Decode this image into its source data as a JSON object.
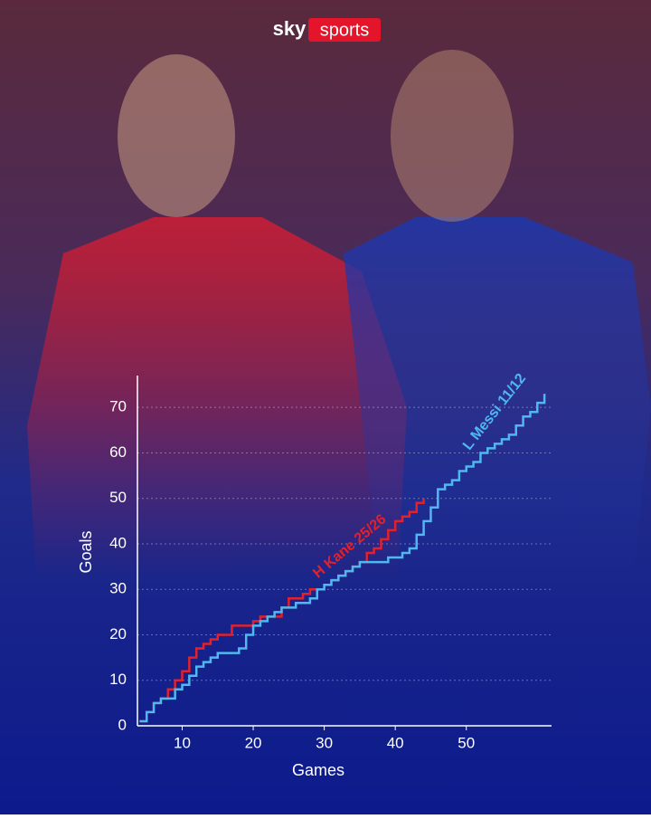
{
  "header": {
    "brand": "sky",
    "brand_badge": "sports"
  },
  "chart_data": {
    "type": "step-line",
    "x_label": "Games",
    "y_label": "Goals",
    "x": [
      4,
      5,
      6,
      7,
      8,
      9,
      10,
      11,
      12,
      13,
      14,
      15,
      16,
      17,
      18,
      19,
      20,
      21,
      22,
      23,
      24,
      25,
      26,
      27,
      28,
      29,
      30,
      31,
      32,
      33,
      34,
      35,
      36,
      37,
      38,
      39,
      40,
      41,
      42,
      43,
      44,
      45,
      46,
      47,
      48,
      49,
      50,
      51,
      52,
      53,
      54,
      55,
      56,
      57,
      58,
      59,
      60,
      61
    ],
    "series": [
      {
        "name": "H Kane 25/26",
        "color": "#e4212b",
        "values": [
          1,
          3,
          5,
          6,
          8,
          10,
          12,
          15,
          17,
          18,
          19,
          20,
          20,
          22,
          22,
          22,
          23,
          24,
          24,
          24,
          26,
          28,
          28,
          29,
          30,
          30,
          31,
          32,
          33,
          34,
          35,
          36,
          38,
          39,
          41,
          43,
          45,
          46,
          47,
          49,
          50,
          null,
          null,
          null,
          null,
          null,
          null,
          null,
          null,
          null,
          null,
          null,
          null,
          null,
          null,
          null,
          null,
          null
        ]
      },
      {
        "name": "L Messi 11/12",
        "color": "#4fb8f0",
        "values": [
          1,
          3,
          5,
          6,
          6,
          8,
          9,
          11,
          13,
          14,
          15,
          16,
          16,
          16,
          17,
          20,
          22,
          23,
          24,
          25,
          26,
          26,
          27,
          27,
          28,
          30,
          31,
          32,
          33,
          34,
          35,
          36,
          36,
          36,
          36,
          37,
          37,
          38,
          39,
          42,
          45,
          48,
          52,
          53,
          54,
          56,
          57,
          58,
          60,
          61,
          62,
          63,
          64,
          66,
          68,
          69,
          71,
          73
        ]
      }
    ],
    "xlim": [
      3.7,
      62
    ],
    "xticks": [
      10,
      20,
      30,
      40,
      50
    ],
    "ylim": [
      0,
      77
    ],
    "yticks": [
      0,
      10,
      20,
      30,
      40,
      50,
      60,
      70
    ],
    "grid": true
  }
}
